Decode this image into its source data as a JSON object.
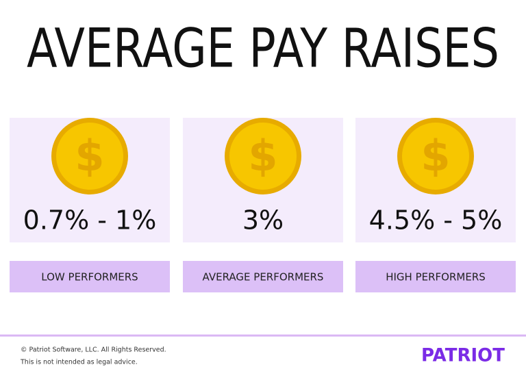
{
  "title": "AVERAGE PAY RAISES",
  "coin_symbol": "$",
  "cards": [
    {
      "value": "0.7% - 1%",
      "label": "LOW PERFORMERS"
    },
    {
      "value": "3%",
      "label": "AVERAGE PERFORMERS"
    },
    {
      "value": "4.5% - 5%",
      "label": "HIGH PERFORMERS"
    }
  ],
  "footer": {
    "copyright": "© Patriot Software, LLC. All Rights Reserved.",
    "disclaimer": "This is not intended as legal advice.",
    "logo": "PATRIOT"
  }
}
